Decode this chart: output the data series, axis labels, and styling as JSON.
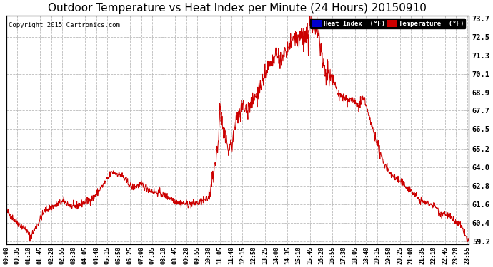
{
  "title": "Outdoor Temperature vs Heat Index per Minute (24 Hours) 20150910",
  "copyright": "Copyright 2015 Cartronics.com",
  "yticks": [
    59.2,
    60.4,
    61.6,
    62.8,
    64.0,
    65.2,
    66.5,
    67.7,
    68.9,
    70.1,
    71.3,
    72.5,
    73.7
  ],
  "ymin": 59.0,
  "ymax": 73.9,
  "line_color": "#cc0000",
  "background_color": "#ffffff",
  "grid_color": "#bbbbbb",
  "legend_heat_index_bg": "#0000cc",
  "legend_temp_bg": "#cc0000",
  "title_fontsize": 11,
  "xtick_interval_minutes": 35,
  "figwidth": 6.9,
  "figheight": 3.75,
  "dpi": 100
}
